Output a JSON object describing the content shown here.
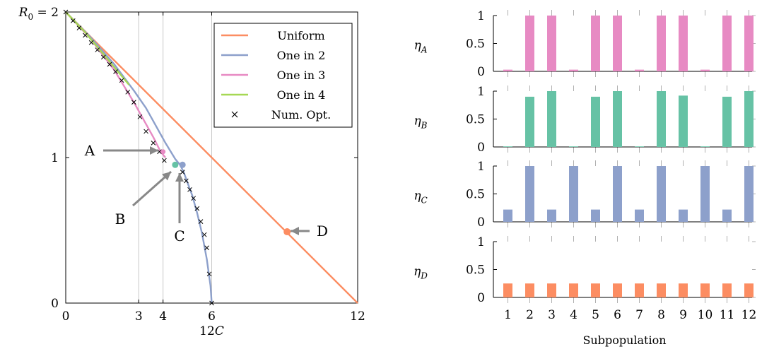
{
  "chart_data": [
    {
      "type": "line",
      "xlabel": "12C",
      "xlabel_parts": {
        "prefix": "12",
        "var": "C"
      },
      "ylabel_top": {
        "var": "R",
        "sub": "0",
        "suffix": " = 2"
      },
      "xlim": [
        0,
        12
      ],
      "ylim": [
        0,
        2
      ],
      "xticks": [
        0,
        3,
        4,
        6,
        12
      ],
      "yticks": [
        {
          "value": 0,
          "label": "0"
        },
        {
          "value": 1,
          "label": "1"
        }
      ],
      "vgrid": [
        3,
        4,
        6
      ],
      "legend": {
        "placement": "top-right",
        "entries": [
          {
            "label": "Uniform",
            "color": "#fc8d62",
            "marker": "line"
          },
          {
            "label": "One in 2",
            "color": "#8da0cb",
            "marker": "line"
          },
          {
            "label": "One in 3",
            "color": "#e78ac3",
            "marker": "line"
          },
          {
            "label": "One in 4",
            "color": "#a6d854",
            "marker": "line"
          },
          {
            "label": "Num. Opt.",
            "color": "#000000",
            "marker": "x"
          }
        ]
      },
      "series": [
        {
          "name": "Uniform",
          "color": "#fc8d62",
          "x": [
            0,
            12
          ],
          "y": [
            2,
            0
          ]
        },
        {
          "name": "One in 2",
          "color": "#8da0cb",
          "x": [
            0,
            1.0,
            2.0,
            2.8,
            3.3,
            3.7,
            4.1,
            4.5,
            4.7,
            4.85,
            5.0,
            5.2,
            5.4,
            5.6,
            5.8,
            5.95,
            6.0
          ],
          "y": [
            2,
            1.83,
            1.64,
            1.46,
            1.34,
            1.22,
            1.1,
            0.99,
            0.95,
            0.9,
            0.83,
            0.74,
            0.62,
            0.48,
            0.3,
            0.12,
            0
          ]
        },
        {
          "name": "One in 3",
          "color": "#e78ac3",
          "x": [
            0,
            1.0,
            2.0,
            2.8,
            3.2,
            3.6,
            3.9,
            4.1
          ],
          "y": [
            2,
            1.82,
            1.6,
            1.38,
            1.26,
            1.14,
            1.04,
            1.0
          ]
        },
        {
          "name": "One in 4",
          "color": "#a6d854",
          "x": [
            0,
            0.8,
            1.5,
            2.0,
            2.6
          ],
          "y": [
            2,
            1.86,
            1.72,
            1.62,
            1.5
          ]
        }
      ],
      "num_opt": {
        "x": [
          0,
          0.3,
          0.55,
          0.8,
          1.05,
          1.3,
          1.55,
          1.8,
          2.05,
          2.3,
          2.55,
          2.8,
          3.05,
          3.3,
          3.6,
          3.85,
          4.05,
          4.5,
          4.8,
          4.95,
          5.1,
          5.25,
          5.4,
          5.55,
          5.7,
          5.8,
          5.9,
          6.0
        ],
        "y": [
          2,
          1.94,
          1.89,
          1.84,
          1.79,
          1.74,
          1.69,
          1.64,
          1.59,
          1.53,
          1.45,
          1.38,
          1.28,
          1.18,
          1.1,
          1.04,
          0.98,
          0.95,
          0.9,
          0.84,
          0.78,
          0.72,
          0.65,
          0.56,
          0.47,
          0.38,
          0.2,
          0
        ]
      },
      "highlight_points": [
        {
          "id": "A",
          "x": 4.0,
          "y": 1.04,
          "color": "#e78ac3"
        },
        {
          "id": "B",
          "x": 4.5,
          "y": 0.95,
          "color": "#66c2a5"
        },
        {
          "id": "C",
          "x": 4.8,
          "y": 0.95,
          "color": "#8da0cb"
        },
        {
          "id": "D",
          "x": 9.1,
          "y": 0.49,
          "color": "#fc8d62"
        }
      ],
      "annotations": [
        {
          "label": "A",
          "color": "#888888"
        },
        {
          "label": "B",
          "color": "#888888"
        },
        {
          "label": "C",
          "color": "#888888"
        },
        {
          "label": "D",
          "color": "#888888"
        }
      ]
    },
    {
      "type": "bar",
      "xlabel": "Subpopulation",
      "categories": [
        "1",
        "2",
        "3",
        "4",
        "5",
        "6",
        "7",
        "8",
        "9",
        "10",
        "11",
        "12"
      ],
      "ylim": [
        0,
        1
      ],
      "yticks": [
        "0",
        "0.5",
        "1"
      ],
      "panels": [
        {
          "label_var": "η",
          "label_sub": "A",
          "color": "#e78ac3",
          "values": [
            0.03,
            1,
            1,
            0.03,
            1,
            1,
            0.03,
            1,
            1,
            0.03,
            1,
            1
          ]
        },
        {
          "label_var": "η",
          "label_sub": "B",
          "color": "#66c2a5",
          "values": [
            0.01,
            0.9,
            1,
            0.01,
            0.9,
            1,
            0.01,
            1,
            0.92,
            0.01,
            0.9,
            1
          ]
        },
        {
          "label_var": "η",
          "label_sub": "C",
          "color": "#8da0cb",
          "values": [
            0.22,
            1,
            0.22,
            1,
            0.22,
            1,
            0.22,
            1,
            0.22,
            1,
            0.22,
            1
          ]
        },
        {
          "label_var": "η",
          "label_sub": "D",
          "color": "#fc8d62",
          "values": [
            0.25,
            0.25,
            0.25,
            0.25,
            0.25,
            0.25,
            0.25,
            0.25,
            0.25,
            0.25,
            0.25,
            0.25
          ]
        }
      ]
    }
  ]
}
